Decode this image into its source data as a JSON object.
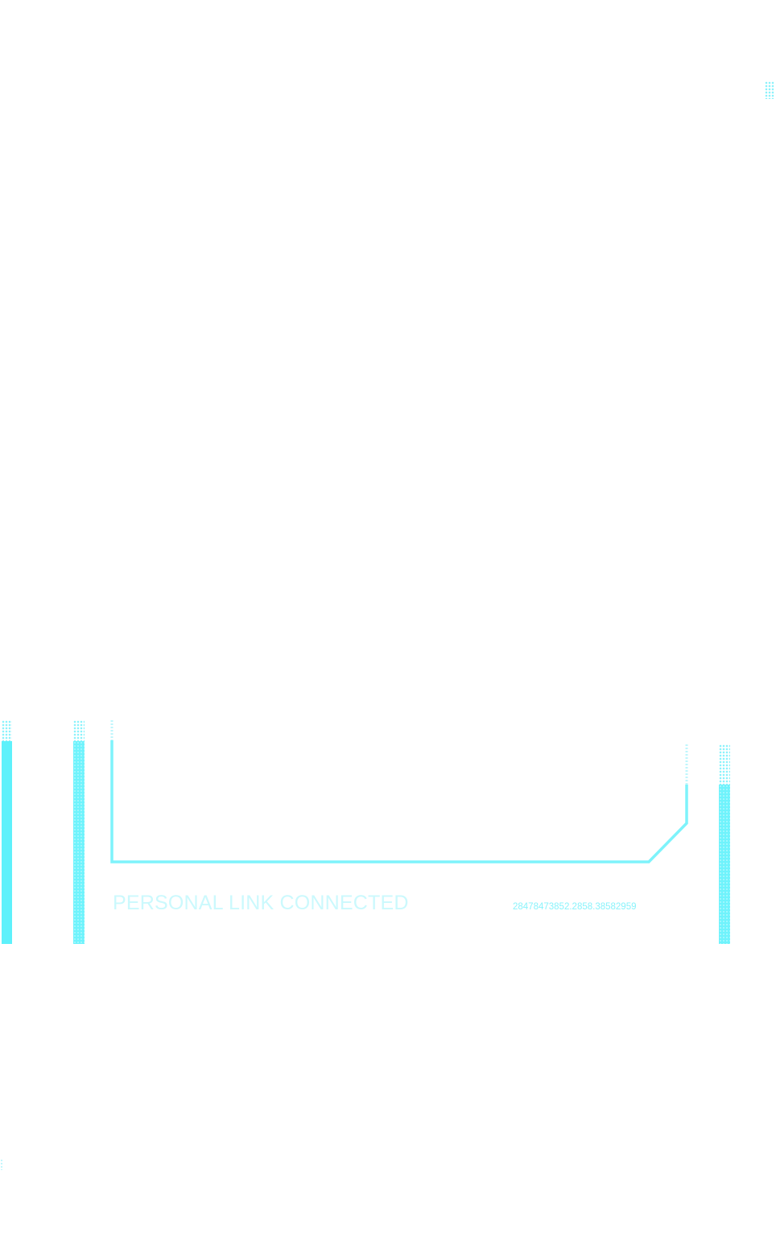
{
  "hud": {
    "status_label": "PERSONAL LINK CONNECTED",
    "link_id": "28478473852.2858.38582959"
  },
  "colors": {
    "accent": "#5ef1fb",
    "accent_light": "#cbf9fd",
    "background": "#ffffff"
  }
}
